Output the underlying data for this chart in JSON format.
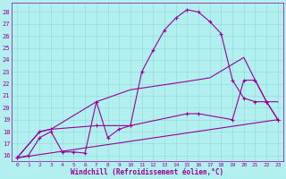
{
  "xlabel": "Windchill (Refroidissement éolien,°C)",
  "background_color": "#b2efef",
  "line_color": "#990099",
  "xlim": [
    -0.5,
    23.5
  ],
  "ylim": [
    15.5,
    28.8
  ],
  "yticks": [
    16,
    17,
    18,
    19,
    20,
    21,
    22,
    23,
    24,
    25,
    26,
    27,
    28
  ],
  "xticks": [
    0,
    1,
    2,
    3,
    4,
    5,
    6,
    7,
    8,
    9,
    10,
    11,
    12,
    13,
    14,
    15,
    16,
    17,
    18,
    19,
    20,
    21,
    22,
    23
  ],
  "line1_x": [
    0,
    1,
    2,
    3,
    4,
    5,
    6,
    7,
    8,
    9,
    10,
    11,
    12,
    13,
    14,
    15,
    16,
    17,
    18,
    19,
    20,
    21,
    22,
    23
  ],
  "line1_y": [
    15.8,
    16.0,
    17.5,
    18.0,
    16.3,
    16.3,
    16.2,
    20.5,
    17.5,
    18.2,
    18.5,
    23.0,
    24.8,
    26.5,
    27.5,
    28.2,
    28.0,
    27.2,
    26.2,
    22.3,
    20.8,
    20.5,
    20.5,
    19.0
  ],
  "line2_x": [
    0,
    23
  ],
  "line2_y": [
    15.8,
    19.0
  ],
  "line3_x": [
    0,
    2,
    3,
    7,
    10,
    15,
    16,
    19,
    20,
    21,
    22,
    23
  ],
  "line3_y": [
    15.8,
    18.0,
    18.2,
    18.5,
    18.5,
    19.5,
    19.5,
    19.0,
    22.3,
    22.3,
    20.5,
    19.0
  ],
  "line4_x": [
    0,
    2,
    3,
    7,
    10,
    15,
    17,
    20,
    21,
    22,
    23
  ],
  "line4_y": [
    15.8,
    18.0,
    18.2,
    20.5,
    21.5,
    22.2,
    22.5,
    24.2,
    22.3,
    20.5,
    20.5
  ]
}
